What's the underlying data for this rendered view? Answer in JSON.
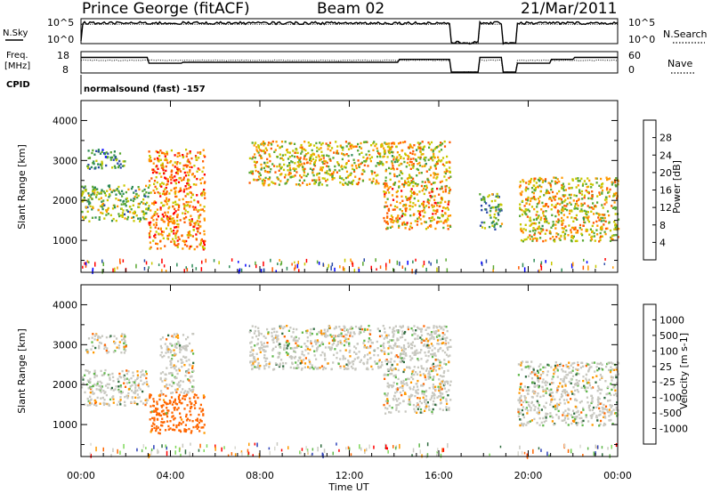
{
  "header": {
    "station": "Prince George (fitACF)",
    "beam": "Beam 02",
    "date": "21/Mar/2011"
  },
  "strip": {
    "nsky_label": "N.Sky",
    "nsearch_label": "N.Search",
    "freq_label_1": "Freq.",
    "freq_label_2": "[MHz]",
    "nave_label": "Nave",
    "cpid_label": "CPID",
    "cpid_text": "normalsound (fast) -157",
    "noise_ticks_left": [
      "10^5",
      "10^0"
    ],
    "noise_ticks_right": [
      "10^5",
      "10^0"
    ],
    "freq_ticks": [
      "18",
      "8"
    ],
    "nave_ticks": [
      "60",
      "0"
    ]
  },
  "colors": {
    "power_scale": [
      "#0000ff",
      "#2a4aa8",
      "#2e8b57",
      "#5aa832",
      "#c8c800",
      "#ff9900",
      "#ff5a00",
      "#ff0000"
    ],
    "velocity_scale": [
      "#2a3fb8",
      "#2e6b3e",
      "#5fb84a",
      "#7ed85a",
      "#c8c8c0",
      "#d8d8d0",
      "#ff9900",
      "#ff6600",
      "#ff0000"
    ],
    "ground_scatter": "#b4b4b4"
  },
  "chart_data": [
    {
      "type": "heatmap",
      "title": "Power",
      "xlabel": "Time UT",
      "ylabel": "Slant Range [km]",
      "x_ticks": [
        "00:00",
        "04:00",
        "08:00",
        "12:00",
        "16:00",
        "20:00",
        "00:00"
      ],
      "y_ticks": [
        "1000",
        "2000",
        "3000",
        "4000"
      ],
      "ylim": [
        200,
        4500
      ],
      "colorbar": {
        "label": "Power [dB]",
        "ticks": [
          "28",
          "24",
          "20",
          "16",
          "12",
          "8",
          "4"
        ],
        "range": [
          0,
          30
        ]
      },
      "data_gaps_hours": [
        [
          16.5,
          17.8
        ],
        [
          18.8,
          19.5
        ]
      ],
      "echo_regions": [
        {
          "t": [
            0.0,
            3.0
          ],
          "range_km": [
            1500,
            2400
          ],
          "power_db": 14
        },
        {
          "t": [
            0.2,
            2.0
          ],
          "range_km": [
            2800,
            3300
          ],
          "power_db": 10
        },
        {
          "t": [
            3.0,
            5.5
          ],
          "range_km": [
            800,
            3300
          ],
          "power_db": 22
        },
        {
          "t": [
            7.5,
            16.5
          ],
          "range_km": [
            2400,
            3500
          ],
          "power_db": 18
        },
        {
          "t": [
            13.5,
            16.5
          ],
          "range_km": [
            1300,
            2400
          ],
          "power_db": 20
        },
        {
          "t": [
            17.8,
            18.8
          ],
          "range_km": [
            1300,
            2200
          ],
          "power_db": 12
        },
        {
          "t": [
            19.5,
            24.0
          ],
          "range_km": [
            1000,
            2600
          ],
          "power_db": 18
        }
      ]
    },
    {
      "type": "heatmap",
      "title": "Velocity",
      "xlabel": "Time UT",
      "ylabel": "Slant Range [km]",
      "x_ticks": [
        "00:00",
        "04:00",
        "08:00",
        "12:00",
        "16:00",
        "20:00",
        "00:00"
      ],
      "y_ticks": [
        "1000",
        "2000",
        "3000",
        "4000"
      ],
      "ylim": [
        200,
        4500
      ],
      "colorbar": {
        "label": "Velocity [m s-1]",
        "ticks": [
          "1000",
          "500",
          "100",
          "25",
          "-25",
          "-100",
          "-500",
          "-1000"
        ]
      },
      "echo_regions": [
        {
          "t": [
            0.0,
            3.0
          ],
          "range_km": [
            1500,
            2400
          ],
          "velocity_ms": 0
        },
        {
          "t": [
            0.2,
            2.0
          ],
          "range_km": [
            2800,
            3300
          ],
          "velocity_ms": 0
        },
        {
          "t": [
            3.0,
            5.5
          ],
          "range_km": [
            800,
            1800
          ],
          "velocity_ms": -150
        },
        {
          "t": [
            3.5,
            5.0
          ],
          "range_km": [
            1800,
            3300
          ],
          "velocity_ms": 0
        },
        {
          "t": [
            7.5,
            16.5
          ],
          "range_km": [
            2400,
            3500
          ],
          "velocity_ms": 0
        },
        {
          "t": [
            13.5,
            16.5
          ],
          "range_km": [
            1300,
            2400
          ],
          "velocity_ms": 0
        },
        {
          "t": [
            19.5,
            24.0
          ],
          "range_km": [
            1000,
            2600
          ],
          "velocity_ms": 0
        }
      ]
    }
  ]
}
